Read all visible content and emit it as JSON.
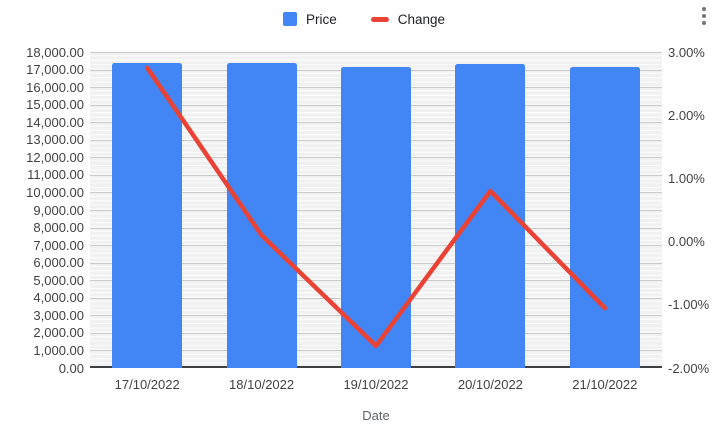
{
  "legend": {
    "items": [
      {
        "label": "Price",
        "color": "#4285f4",
        "shape": "square"
      },
      {
        "label": "Change",
        "color": "#ea4335",
        "shape": "line"
      }
    ]
  },
  "menu": {
    "icon": "kebab-menu"
  },
  "chart_data": {
    "type": "combo",
    "categories": [
      "17/10/2022",
      "18/10/2022",
      "19/10/2022",
      "20/10/2022",
      "21/10/2022"
    ],
    "series": [
      {
        "name": "Price",
        "type": "bar",
        "axis": "left",
        "color": "#4285f4",
        "values": [
          17400,
          17400,
          17150,
          17300,
          17150
        ]
      },
      {
        "name": "Change",
        "type": "line",
        "axis": "right",
        "color": "#ea4335",
        "values": [
          2.75,
          0.1,
          -1.65,
          0.8,
          -1.05
        ]
      }
    ],
    "title": "",
    "xlabel": "Date",
    "ylabel": "",
    "left_axis": {
      "min": 0,
      "max": 18000,
      "step": 1000,
      "ticks": [
        "18,000.00",
        "17,000.00",
        "16,000.00",
        "15,000.00",
        "14,000.00",
        "13,000.00",
        "12,000.00",
        "11,000.00",
        "10,000.00",
        "9,000.00",
        "8,000.00",
        "7,000.00",
        "6,000.00",
        "5,000.00",
        "4,000.00",
        "3,000.00",
        "2,000.00",
        "1,000.00",
        "0.00"
      ]
    },
    "right_axis": {
      "min": -2,
      "max": 3,
      "step": 1,
      "ticks": [
        "3.00%",
        "2.00%",
        "1.00%",
        "0.00%",
        "-1.00%",
        "-2.00%"
      ]
    },
    "grid": true,
    "legend_position": "top"
  },
  "colors": {
    "bar": "#4285f4",
    "line": "#ea4335",
    "plot_bg": "#f1f1f1",
    "major_gridline": "#cbcbcb",
    "baseline": "#3c4043",
    "tick_text": "#424242"
  }
}
